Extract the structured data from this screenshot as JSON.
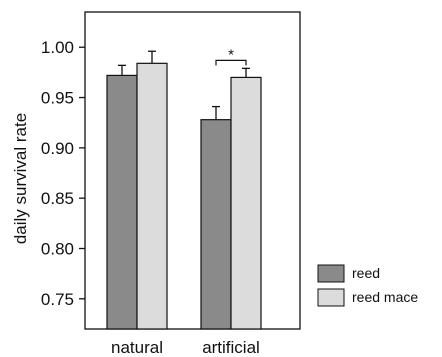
{
  "chart_data": {
    "type": "bar",
    "title": "",
    "xlabel": "",
    "ylabel": "daily survival rate",
    "ylim": [
      0.72,
      1.035
    ],
    "yticks": [
      "0.75",
      "0.80",
      "0.85",
      "0.90",
      "0.95",
      "1.00"
    ],
    "categories": [
      "natural",
      "artificial"
    ],
    "series": [
      {
        "name": "reed",
        "color": "#8a8a8a",
        "values": [
          0.972,
          0.928
        ],
        "errors": [
          0.01,
          0.013
        ]
      },
      {
        "name": "reed mace",
        "color": "#dcdcdc",
        "values": [
          0.984,
          0.97
        ],
        "errors": [
          0.012,
          0.009
        ]
      }
    ],
    "annotations": [
      {
        "category": "artificial",
        "text": "*"
      }
    ],
    "grid": false,
    "legend_position": "bottom-right"
  }
}
